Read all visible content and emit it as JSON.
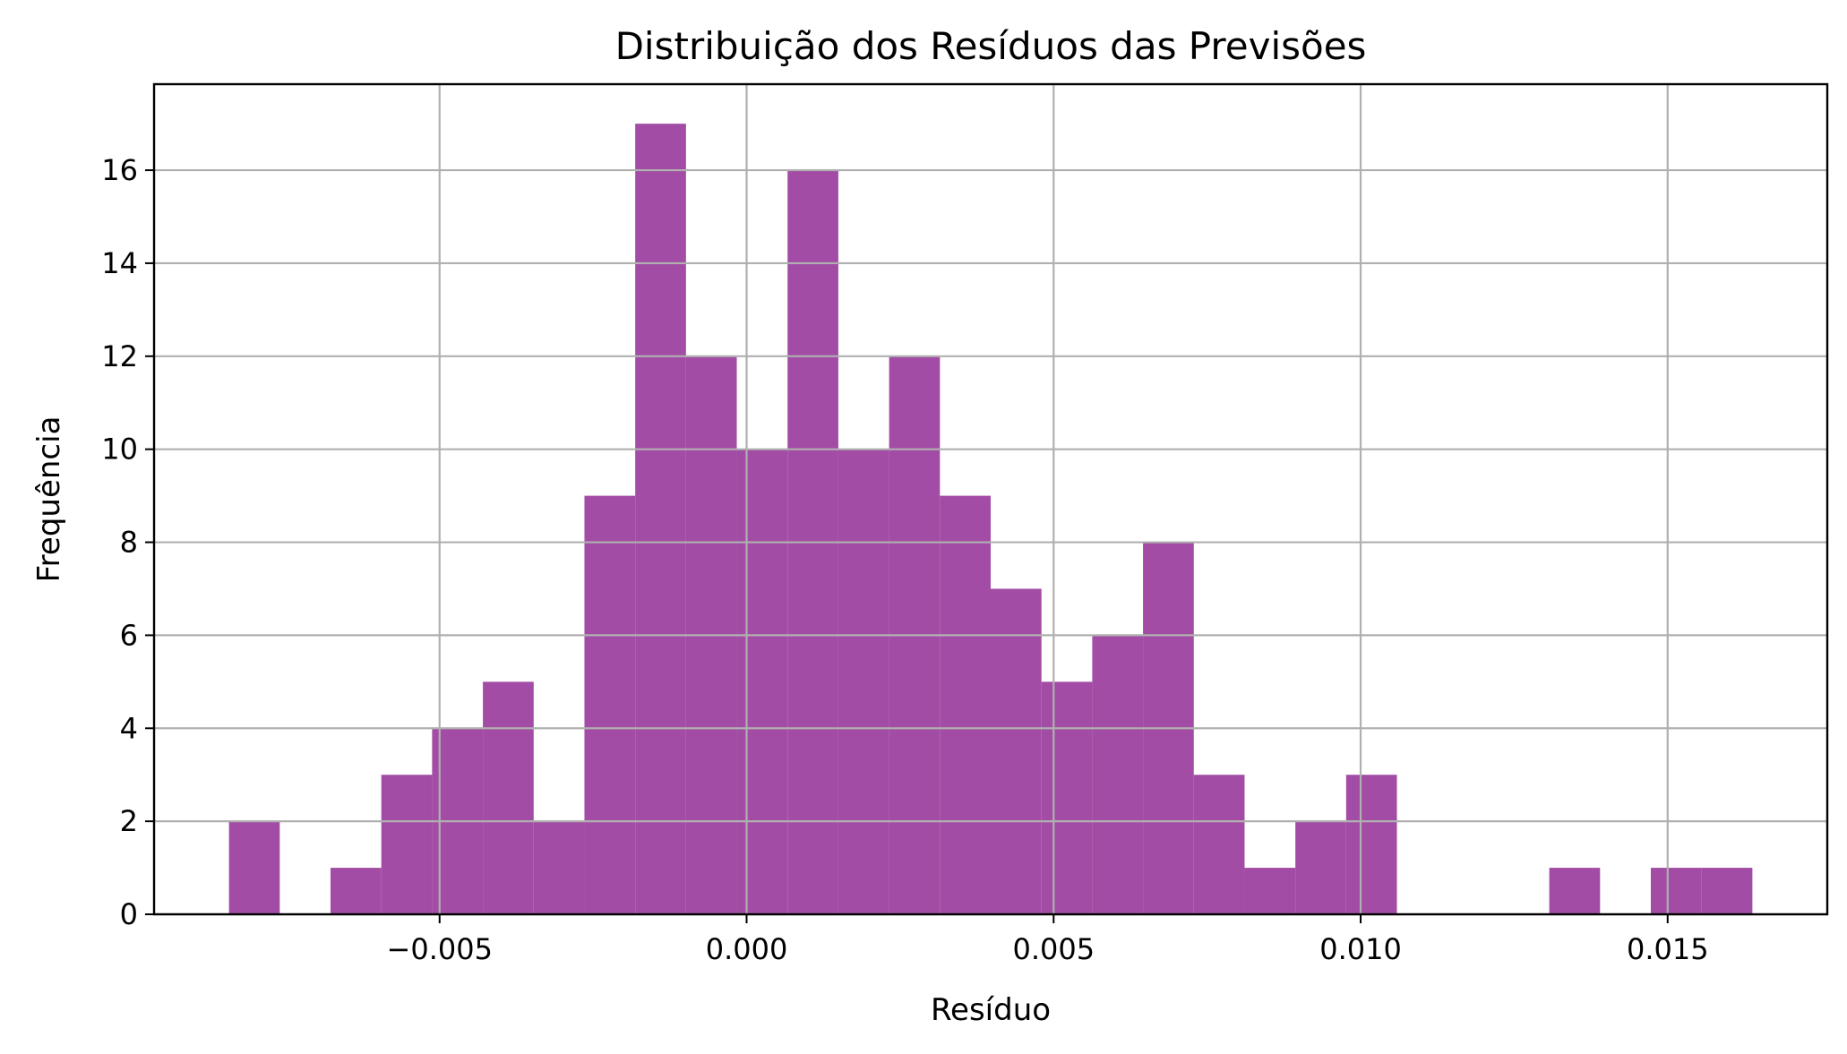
{
  "chart_data": {
    "type": "bar",
    "title": "Distribuição dos Resíduos das Previsões",
    "xlabel": "Resíduo",
    "ylabel": "Frequência",
    "xlim": [
      -0.00965,
      0.0176
    ],
    "ylim": [
      0,
      17.85
    ],
    "xticks": [
      -0.005,
      0.0,
      0.005,
      0.01,
      0.015
    ],
    "xtick_labels": [
      "−0.005",
      "0.000",
      "0.005",
      "0.010",
      "0.015"
    ],
    "yticks": [
      0,
      2,
      4,
      6,
      8,
      10,
      12,
      14,
      16
    ],
    "ytick_labels": [
      "0",
      "2",
      "4",
      "6",
      "8",
      "10",
      "12",
      "14",
      "16"
    ],
    "grid": true,
    "bar_color": "#a24ca5",
    "bin_start": -0.00843,
    "bin_width": 0.000827,
    "counts": [
      2,
      0,
      1,
      3,
      4,
      5,
      2,
      9,
      17,
      12,
      10,
      16,
      10,
      12,
      9,
      7,
      5,
      6,
      8,
      3,
      1,
      2,
      3,
      0,
      0,
      0,
      1,
      0,
      1,
      1
    ]
  }
}
